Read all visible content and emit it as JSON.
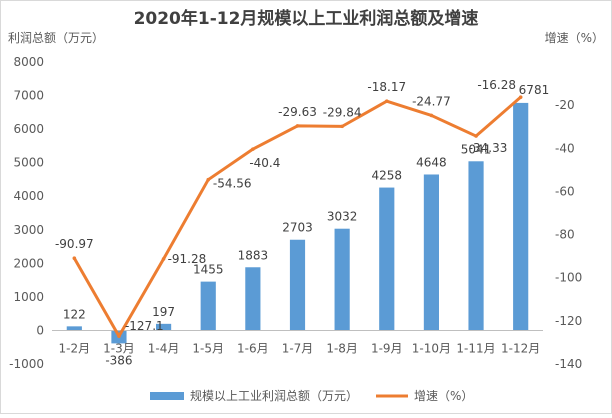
{
  "chart_data": {
    "type": "bar+line",
    "title": "2020年1-12月规模以上工业利润总额及增速",
    "y_left_label": "利润总额（万元）",
    "y_right_label": "增速（%）",
    "categories": [
      "1-2月",
      "1-3月",
      "1-4月",
      "1-5月",
      "1-6月",
      "1-7月",
      "1-8月",
      "1-9月",
      "1-10月",
      "1-11月",
      "1-12月"
    ],
    "y_left_lim": [
      -1000,
      8000
    ],
    "y_left_ticks": [
      -1000,
      0,
      1000,
      2000,
      3000,
      4000,
      5000,
      6000,
      7000,
      8000
    ],
    "y_right_lim": [
      -140,
      0
    ],
    "y_right_ticks": [
      -140,
      -120,
      -100,
      -80,
      -60,
      -40,
      -20,
      0
    ],
    "y_right_tick_labels": [
      "-140",
      "-120",
      "-100",
      "-80",
      "-60",
      "-40",
      "-20",
      ""
    ],
    "grid": false,
    "legend_position": "bottom",
    "series": [
      {
        "name": "规模以上工业利润总额（万元）",
        "type": "bar",
        "axis": "left",
        "color": "#5b9bd5",
        "values": [
          122,
          -386,
          197,
          1455,
          1883,
          2703,
          3032,
          4258,
          4648,
          5041,
          6781
        ],
        "labels": [
          "122",
          "-386",
          "197",
          "1455",
          "1883",
          "2703",
          "3032",
          "4258",
          "4648",
          "5041",
          "6781"
        ]
      },
      {
        "name": "增速（%）",
        "type": "line",
        "axis": "right",
        "color": "#ed7d31",
        "values": [
          -90.97,
          -127.1,
          -91.28,
          -54.56,
          -40.4,
          -29.63,
          -29.84,
          -18.17,
          -24.77,
          -34.33,
          -16.28
        ],
        "labels": [
          "-90.97",
          "-127.1",
          "-91.28",
          "-54.56",
          "-40.4",
          "-29.63",
          "-29.84",
          "-18.17",
          "-24.77",
          "-34.33",
          "-16.28"
        ]
      }
    ]
  }
}
